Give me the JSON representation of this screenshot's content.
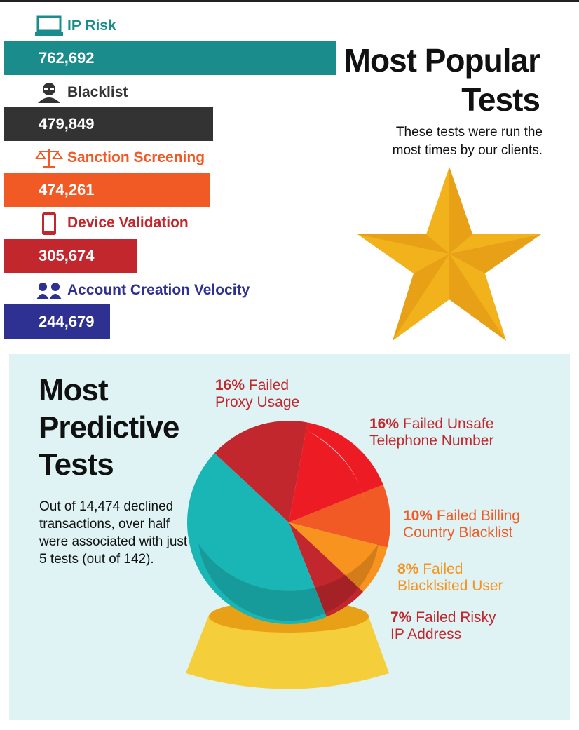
{
  "popular": {
    "title_line1": "Most Popular",
    "title_line2": "Tests",
    "subtitle_line1": "These tests were run the",
    "subtitle_line2": "most times by our clients."
  },
  "predictive": {
    "title_line1": "Most",
    "title_line2": "Predictive",
    "title_line3": "Tests",
    "description": "Out of 14,474 declined transactions, over half were associated with just 5 tests (out of 142)."
  },
  "colors": {
    "teal": "#1a8c8c",
    "dark": "#333333",
    "orange": "#f15a24",
    "red": "#c1272d",
    "navy": "#2e3192",
    "panel": "#dff3f4",
    "star": "#f2b21b"
  },
  "chart_data": [
    {
      "type": "bar",
      "orientation": "horizontal",
      "categories": [
        "IP Risk",
        "Blacklist",
        "Sanction Screening",
        "Device Validation",
        "Account Creation Velocity"
      ],
      "values": [
        762692,
        479849,
        474261,
        305674,
        244679
      ],
      "value_labels": [
        "762,692",
        "479,849",
        "474,261",
        "305,674",
        "244,679"
      ],
      "icons": [
        "laptop-icon",
        "masked-person-icon",
        "scales-icon",
        "mobile-phone-icon",
        "two-people-icon"
      ],
      "bar_colors": [
        "#1a8c8c",
        "#333333",
        "#f15a24",
        "#c1272d",
        "#2e3192"
      ]
    },
    {
      "type": "pie",
      "slices": [
        {
          "percent_label": "16%",
          "text": "Failed Proxy Usage",
          "line1": "Failed",
          "line2": "Proxy Usage",
          "value": 16,
          "color": "#c1272d"
        },
        {
          "percent_label": "16%",
          "text": "Failed Unsafe Telephone Number",
          "line1": "Failed Unsafe",
          "line2": "Telephone Number",
          "value": 16,
          "color": "#ed1c24"
        },
        {
          "percent_label": "10%",
          "text": "Failed Billing Country Blacklist",
          "line1": "Failed Billing",
          "line2": "Country Blacklist",
          "value": 10,
          "color": "#f15a24"
        },
        {
          "percent_label": "8%",
          "text": "Failed Blacklsited User",
          "line1": "Failed",
          "line2": "Blacklsited User",
          "value": 8,
          "color": "#f7931e"
        },
        {
          "percent_label": "7%",
          "text": "Failed Risky IP Address",
          "line1": "Failed Risky",
          "line2": "IP Address",
          "value": 7,
          "color": "#c1272d"
        }
      ],
      "remainder_color": "#1ab5b5"
    }
  ]
}
